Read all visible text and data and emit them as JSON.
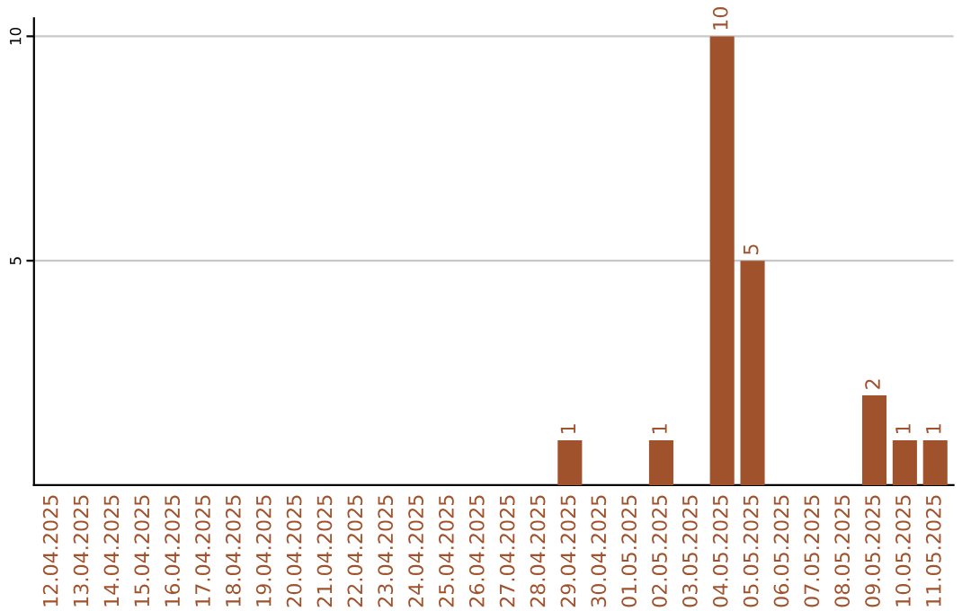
{
  "chart_data": {
    "type": "bar",
    "categories": [
      "12.04.2025",
      "13.04.2025",
      "14.04.2025",
      "15.04.2025",
      "16.04.2025",
      "17.04.2025",
      "18.04.2025",
      "19.04.2025",
      "20.04.2025",
      "21.04.2025",
      "22.04.2025",
      "23.04.2025",
      "24.04.2025",
      "25.04.2025",
      "26.04.2025",
      "27.04.2025",
      "28.04.2025",
      "29.04.2025",
      "30.04.2025",
      "01.05.2025",
      "02.05.2025",
      "03.05.2025",
      "04.05.2025",
      "05.05.2025",
      "06.05.2025",
      "07.05.2025",
      "08.05.2025",
      "09.05.2025",
      "10.05.2025",
      "11.05.2025"
    ],
    "values": [
      0,
      0,
      0,
      0,
      0,
      0,
      0,
      0,
      0,
      0,
      0,
      0,
      0,
      0,
      0,
      0,
      0,
      1,
      0,
      0,
      1,
      0,
      10,
      5,
      0,
      0,
      0,
      2,
      1,
      1
    ],
    "value_labels": [
      null,
      null,
      null,
      null,
      null,
      null,
      null,
      null,
      null,
      null,
      null,
      null,
      null,
      null,
      null,
      null,
      null,
      "1",
      null,
      null,
      "1",
      null,
      "10",
      "5",
      null,
      null,
      null,
      "2",
      "1",
      "1"
    ],
    "color": "#a0522d",
    "ylim": [
      0,
      10.4
    ],
    "yticks": [
      5,
      10
    ],
    "grid": "y"
  }
}
